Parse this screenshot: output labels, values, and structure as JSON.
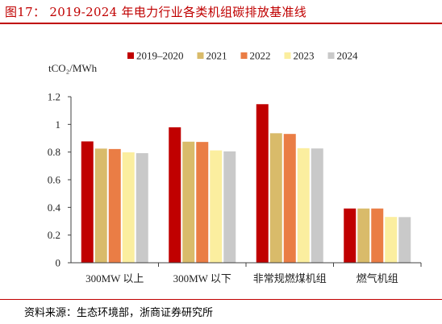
{
  "figure": {
    "title": "图17： 2019-2024 年电力行业各类机组碳排放基准线",
    "source": "资料来源：生态环境部，浙商证券研究所"
  },
  "chart_data": {
    "type": "bar",
    "ylabel": "tCO₂/MWh",
    "ylim": [
      0,
      1.2
    ],
    "yticks": [
      0,
      0.2,
      0.4,
      0.6,
      0.8,
      1,
      1.2
    ],
    "ytick_labels": [
      "0",
      "0.2",
      "0.4",
      "0.6",
      "0.8",
      "1",
      "1.2"
    ],
    "categories": [
      "300MW 以上",
      "300MW 以下",
      "非常规燃煤机组",
      "燃气机组"
    ],
    "grid": false,
    "legend_position": "top",
    "series": [
      {
        "name": "2019–2020",
        "color": "#c00000",
        "values": [
          0.877,
          0.979,
          1.146,
          0.392
        ]
      },
      {
        "name": "2021",
        "color": "#d9bb6a",
        "values": [
          0.825,
          0.875,
          0.936,
          0.392
        ]
      },
      {
        "name": "2022",
        "color": "#ea7d45",
        "values": [
          0.822,
          0.873,
          0.931,
          0.392
        ]
      },
      {
        "name": "2023",
        "color": "#fbee9f",
        "values": [
          0.798,
          0.812,
          0.828,
          0.331
        ]
      },
      {
        "name": "2024",
        "color": "#c9c9c9",
        "values": [
          0.792,
          0.805,
          0.826,
          0.33
        ]
      }
    ]
  }
}
